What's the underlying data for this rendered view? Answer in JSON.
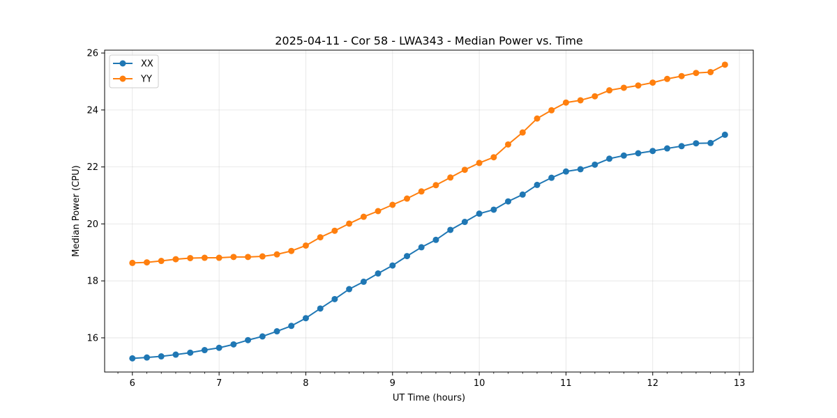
{
  "chart_data": {
    "type": "line",
    "title": "2025-04-11 - Cor 58 - LWA343 - Median Power vs. Time",
    "xlabel": "UT Time (hours)",
    "ylabel": "Median Power (CPU)",
    "xlim": [
      5.68,
      13.16
    ],
    "ylim": [
      14.8,
      26.1
    ],
    "xticks": [
      6,
      7,
      8,
      9,
      10,
      11,
      12,
      13
    ],
    "xtick_labels": [
      "6",
      "7",
      "8",
      "9",
      "10",
      "11",
      "12",
      "13"
    ],
    "yticks": [
      16,
      18,
      20,
      22,
      24,
      26
    ],
    "ytick_labels": [
      "16",
      "18",
      "20",
      "22",
      "24",
      "26"
    ],
    "grid": true,
    "legend_position": "top-left",
    "x": [
      6.0,
      6.167,
      6.333,
      6.5,
      6.667,
      6.833,
      7.0,
      7.167,
      7.333,
      7.5,
      7.667,
      7.833,
      8.0,
      8.167,
      8.333,
      8.5,
      8.667,
      8.833,
      9.0,
      9.167,
      9.333,
      9.5,
      9.667,
      9.833,
      10.0,
      10.167,
      10.333,
      10.5,
      10.667,
      10.833,
      11.0,
      11.167,
      11.333,
      11.5,
      11.667,
      11.833,
      12.0,
      12.167,
      12.333,
      12.5,
      12.667,
      12.833
    ],
    "series": [
      {
        "name": "XX",
        "color": "#1f77b4",
        "values": [
          15.28,
          15.31,
          15.35,
          15.41,
          15.48,
          15.57,
          15.65,
          15.77,
          15.92,
          16.05,
          16.23,
          16.42,
          16.69,
          17.03,
          17.36,
          17.71,
          17.97,
          18.26,
          18.54,
          18.87,
          19.18,
          19.44,
          19.79,
          20.07,
          20.36,
          20.5,
          20.79,
          21.03,
          21.37,
          21.62,
          21.84,
          21.92,
          22.08,
          22.29,
          22.4,
          22.48,
          22.56,
          22.65,
          22.73,
          22.83,
          22.84,
          23.13
        ]
      },
      {
        "name": "YY",
        "color": "#ff7f0e",
        "values": [
          18.63,
          18.65,
          18.7,
          18.76,
          18.8,
          18.81,
          18.81,
          18.84,
          18.84,
          18.86,
          18.93,
          19.05,
          19.24,
          19.53,
          19.76,
          20.01,
          20.25,
          20.45,
          20.67,
          20.89,
          21.14,
          21.36,
          21.63,
          21.9,
          22.14,
          22.34,
          22.79,
          23.21,
          23.7,
          23.99,
          24.26,
          24.34,
          24.48,
          24.69,
          24.78,
          24.86,
          24.96,
          25.09,
          25.19,
          25.3,
          25.33,
          25.59
        ]
      }
    ]
  }
}
